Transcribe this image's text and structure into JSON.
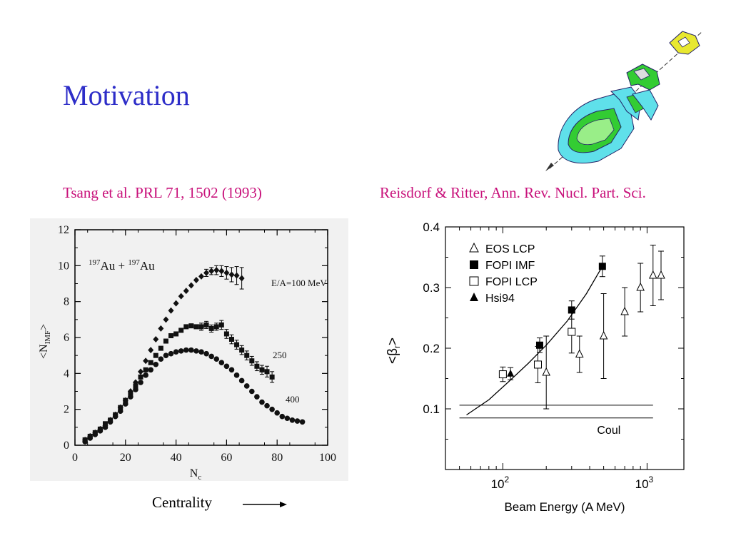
{
  "slide": {
    "title": "Motivation",
    "left_citation": "Tsang et al. PRL 71, 1502 (1993)",
    "right_citation": "Reisdorf & Ritter, Ann. Rev. Nucl. Part. Sci.",
    "centrality_label": "Centrality"
  },
  "chart_data": [
    {
      "type": "scatter",
      "xlabel": "N_c",
      "ylabel": "<N_IMF>",
      "xlim": [
        0,
        100
      ],
      "ylim": [
        0,
        12
      ],
      "x_ticks": [
        0,
        20,
        40,
        60,
        80,
        100
      ],
      "y_ticks": [
        0,
        2,
        4,
        6,
        8,
        10,
        12
      ],
      "annotation": "197Au + 197Au",
      "series": [
        {
          "name": "E/A=100 MeV",
          "marker": "diamond",
          "x": [
            4,
            6,
            8,
            10,
            12,
            14,
            16,
            18,
            20,
            22,
            24,
            26,
            28,
            30,
            32,
            34,
            36,
            38,
            40,
            42,
            44,
            46,
            48,
            50,
            52,
            54,
            56,
            58,
            60,
            62,
            64,
            66
          ],
          "y": [
            0.3,
            0.5,
            0.7,
            0.9,
            1.1,
            1.4,
            1.7,
            2.1,
            2.5,
            3.0,
            3.5,
            4.1,
            4.7,
            5.3,
            5.9,
            6.5,
            7.0,
            7.5,
            7.9,
            8.3,
            8.6,
            8.9,
            9.2,
            9.4,
            9.6,
            9.7,
            9.75,
            9.7,
            9.6,
            9.5,
            9.45,
            9.3
          ],
          "err": [
            0,
            0,
            0,
            0,
            0,
            0,
            0,
            0,
            0,
            0,
            0,
            0,
            0,
            0,
            0,
            0,
            0,
            0,
            0,
            0,
            0,
            0,
            0,
            0,
            0.2,
            0.2,
            0.25,
            0.3,
            0.35,
            0.4,
            0.5,
            0.6
          ]
        },
        {
          "name": "250",
          "marker": "square",
          "x": [
            4,
            6,
            8,
            10,
            12,
            14,
            16,
            18,
            20,
            22,
            24,
            26,
            28,
            30,
            32,
            34,
            36,
            38,
            40,
            42,
            44,
            46,
            48,
            50,
            52,
            54,
            56,
            58,
            60,
            62,
            64,
            66,
            68,
            70,
            72,
            74,
            76,
            78
          ],
          "y": [
            0.3,
            0.5,
            0.7,
            0.9,
            1.2,
            1.4,
            1.7,
            2.1,
            2.5,
            2.9,
            3.3,
            3.8,
            4.2,
            4.6,
            5.0,
            5.4,
            5.8,
            6.1,
            6.2,
            6.4,
            6.6,
            6.65,
            6.6,
            6.6,
            6.7,
            6.5,
            6.6,
            6.7,
            6.2,
            5.9,
            5.6,
            5.3,
            5.0,
            4.7,
            4.4,
            4.2,
            4.1,
            3.8
          ],
          "err": [
            0,
            0,
            0,
            0,
            0,
            0,
            0,
            0,
            0,
            0,
            0,
            0,
            0,
            0,
            0,
            0,
            0,
            0,
            0,
            0,
            0,
            0,
            0,
            0.2,
            0.2,
            0.2,
            0.2,
            0.25,
            0.25,
            0.25,
            0.25,
            0.25,
            0.25,
            0.25,
            0.25,
            0.25,
            0.3,
            0.3
          ]
        },
        {
          "name": "400",
          "marker": "circle",
          "x": [
            4,
            6,
            8,
            10,
            12,
            14,
            16,
            18,
            20,
            22,
            24,
            26,
            28,
            30,
            32,
            34,
            36,
            38,
            40,
            42,
            44,
            46,
            48,
            50,
            52,
            54,
            56,
            58,
            60,
            62,
            64,
            66,
            68,
            70,
            72,
            74,
            76,
            78,
            80,
            82,
            84,
            86,
            88,
            90
          ],
          "y": [
            0.2,
            0.4,
            0.6,
            0.8,
            1.0,
            1.3,
            1.6,
            1.9,
            2.3,
            2.7,
            3.1,
            3.5,
            3.9,
            4.2,
            4.5,
            4.8,
            5.0,
            5.1,
            5.2,
            5.25,
            5.3,
            5.3,
            5.25,
            5.2,
            5.1,
            4.95,
            4.8,
            4.6,
            4.4,
            4.2,
            3.9,
            3.6,
            3.3,
            3.0,
            2.7,
            2.4,
            2.2,
            2.0,
            1.8,
            1.6,
            1.5,
            1.4,
            1.35,
            1.3
          ]
        }
      ]
    },
    {
      "type": "scatter",
      "xlabel": "Beam Energy (A MeV)",
      "ylabel": "<β_r>",
      "x_scale": "log",
      "xlim": [
        40,
        1800
      ],
      "ylim": [
        0,
        0.4
      ],
      "y_ticks": [
        0.1,
        0.2,
        0.3,
        0.4
      ],
      "x_tick_labels": [
        "10^2",
        "10^3"
      ],
      "legend_position": "top-left",
      "series": [
        {
          "name": "EOS LCP",
          "marker": "open-triangle",
          "x": [
            200,
            340,
            500,
            700,
            900,
            1100,
            1250
          ],
          "y": [
            0.16,
            0.19,
            0.22,
            0.26,
            0.3,
            0.32,
            0.32
          ],
          "err": [
            0.06,
            0.03,
            0.07,
            0.04,
            0.04,
            0.05,
            0.04
          ]
        },
        {
          "name": "FOPI IMF",
          "marker": "filled-square",
          "x": [
            180,
            300,
            490
          ],
          "y": [
            0.205,
            0.263,
            0.335
          ],
          "err": [
            0.012,
            0.015,
            0.017
          ]
        },
        {
          "name": "FOPI LCP",
          "marker": "open-square",
          "x": [
            100,
            175,
            300
          ],
          "y": [
            0.157,
            0.173,
            0.227
          ],
          "err": [
            0.012,
            0.03,
            0.035
          ]
        },
        {
          "name": "Hsi94",
          "marker": "filled-triangle",
          "x": [
            113
          ],
          "y": [
            0.158
          ],
          "err": [
            0.01
          ]
        }
      ],
      "fit_curve": {
        "x": [
          56,
          80,
          110,
          150,
          200,
          280,
          380,
          490
        ],
        "y": [
          0.09,
          0.115,
          0.145,
          0.175,
          0.205,
          0.245,
          0.29,
          0.335
        ]
      },
      "coulomb_lines": {
        "label": "Coul",
        "y": [
          0.106,
          0.085
        ],
        "x_range": [
          50,
          1100
        ]
      }
    }
  ],
  "detector_graphic": {
    "colors": [
      "#5fe0ea",
      "#33cc33",
      "#e8e830"
    ]
  }
}
